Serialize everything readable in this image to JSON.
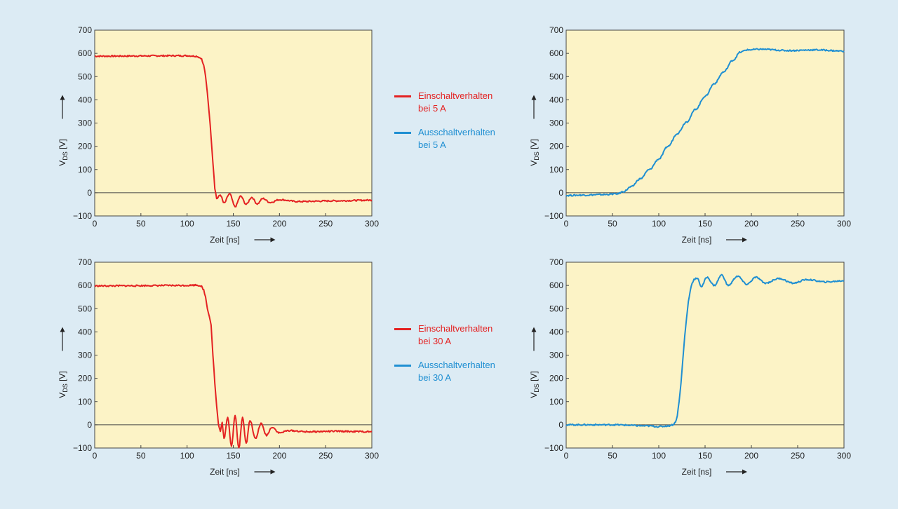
{
  "legend": {
    "group_5A": {
      "on": {
        "line1": "Einschaltverhalten",
        "line2": "bei 5 A"
      },
      "off": {
        "line1": "Ausschaltverhalten",
        "line2": "bei 5 A"
      }
    },
    "group_30A": {
      "on": {
        "line1": "Einschaltverhalten",
        "line2": "bei 30 A"
      },
      "off": {
        "line1": "Ausschaltverhalten",
        "line2": "bei 30 A"
      }
    }
  },
  "colors": {
    "background": "#dcebf4",
    "plot_bg": "#fcf3c6",
    "turn_on": "#e42222",
    "turn_off": "#1f8fd2",
    "axis": "#444444"
  },
  "chart_data": [
    {
      "id": "on-5A",
      "type": "line",
      "xlabel": "Zeit [ns]",
      "ylabel": "V_DS [V]",
      "xlim": [
        0,
        300
      ],
      "ylim": [
        -100,
        700
      ],
      "xticks": [
        0,
        50,
        100,
        150,
        200,
        250,
        300
      ],
      "yticks": [
        -100,
        0,
        100,
        200,
        300,
        400,
        500,
        600,
        700
      ],
      "ytick_labels": [
        "−100",
        "0",
        "100",
        "200",
        "300",
        "400",
        "500",
        "600",
        "700"
      ],
      "series": [
        {
          "name": "Einschaltverhalten bei 5 A",
          "color": "#e42222",
          "x": [
            0,
            100,
            110,
            115,
            118,
            120,
            122,
            124,
            126,
            128,
            130,
            132,
            136,
            140,
            146,
            152,
            158,
            164,
            170,
            176,
            182,
            190,
            200,
            220,
            260,
            300
          ],
          "y": [
            588,
            590,
            588,
            580,
            550,
            500,
            430,
            340,
            240,
            130,
            20,
            -25,
            -10,
            -45,
            -5,
            -60,
            -15,
            -50,
            -20,
            -48,
            -25,
            -42,
            -30,
            -38,
            -35,
            -32
          ]
        }
      ]
    },
    {
      "id": "off-5A",
      "type": "line",
      "xlabel": "Zeit [ns]",
      "ylabel": "V_DS [V]",
      "xlim": [
        0,
        300
      ],
      "ylim": [
        -100,
        700
      ],
      "xticks": [
        0,
        50,
        100,
        150,
        200,
        250,
        300
      ],
      "yticks": [
        -100,
        0,
        100,
        200,
        300,
        400,
        500,
        600,
        700
      ],
      "ytick_labels": [
        "−100",
        "0",
        "100",
        "200",
        "300",
        "400",
        "500",
        "600",
        "700"
      ],
      "series": [
        {
          "name": "Ausschaltverhalten bei 5 A",
          "color": "#1f8fd2",
          "x": [
            0,
            20,
            40,
            55,
            62,
            70,
            80,
            90,
            100,
            110,
            120,
            130,
            140,
            150,
            160,
            170,
            180,
            188,
            195,
            210,
            240,
            270,
            300
          ],
          "y": [
            -12,
            -10,
            -8,
            -5,
            5,
            25,
            60,
            100,
            145,
            200,
            255,
            305,
            360,
            415,
            470,
            520,
            570,
            605,
            615,
            618,
            612,
            615,
            610
          ]
        }
      ]
    },
    {
      "id": "on-30A",
      "type": "line",
      "xlabel": "Zeit [ns]",
      "ylabel": "V_DS [V]",
      "xlim": [
        0,
        300
      ],
      "ylim": [
        -100,
        700
      ],
      "xticks": [
        0,
        50,
        100,
        150,
        200,
        250,
        300
      ],
      "yticks": [
        -100,
        0,
        100,
        200,
        300,
        400,
        500,
        600,
        700
      ],
      "ytick_labels": [
        "−100",
        "0",
        "100",
        "200",
        "300",
        "400",
        "500",
        "600",
        "700"
      ],
      "series": [
        {
          "name": "Einschaltverhalten bei 30 A",
          "color": "#e42222",
          "x": [
            0,
            100,
            110,
            115,
            118,
            120,
            122,
            124,
            126,
            128,
            130,
            132,
            134,
            136,
            138,
            140,
            144,
            148,
            152,
            156,
            160,
            164,
            168,
            174,
            180,
            186,
            192,
            200,
            210,
            230,
            260,
            300
          ],
          "y": [
            598,
            600,
            602,
            598,
            580,
            550,
            500,
            470,
            430,
            300,
            180,
            80,
            0,
            -30,
            10,
            -60,
            30,
            -90,
            40,
            -100,
            30,
            -80,
            20,
            -60,
            5,
            -45,
            -10,
            -35,
            -25,
            -30,
            -28,
            -30
          ]
        }
      ]
    },
    {
      "id": "off-30A",
      "type": "line",
      "xlabel": "Zeit [ns]",
      "ylabel": "V_DS [V]",
      "xlim": [
        0,
        300
      ],
      "ylim": [
        -100,
        700
      ],
      "xticks": [
        0,
        50,
        100,
        150,
        200,
        250,
        300
      ],
      "yticks": [
        -100,
        0,
        100,
        200,
        300,
        400,
        500,
        600,
        700
      ],
      "ytick_labels": [
        "−100",
        "0",
        "100",
        "200",
        "300",
        "400",
        "500",
        "600",
        "700"
      ],
      "series": [
        {
          "name": "Ausschaltverhalten bei 30 A",
          "color": "#1f8fd2",
          "x": [
            0,
            50,
            90,
            100,
            110,
            115,
            118,
            120,
            122,
            124,
            126,
            128,
            130,
            132,
            134,
            136,
            138,
            140,
            142,
            146,
            152,
            160,
            168,
            175,
            185,
            195,
            205,
            215,
            230,
            245,
            260,
            280,
            300
          ],
          "y": [
            0,
            0,
            -5,
            -8,
            -5,
            0,
            10,
            40,
            100,
            180,
            280,
            380,
            460,
            530,
            580,
            610,
            625,
            630,
            628,
            595,
            635,
            600,
            645,
            600,
            640,
            605,
            635,
            610,
            630,
            610,
            625,
            615,
            620
          ]
        }
      ]
    }
  ]
}
